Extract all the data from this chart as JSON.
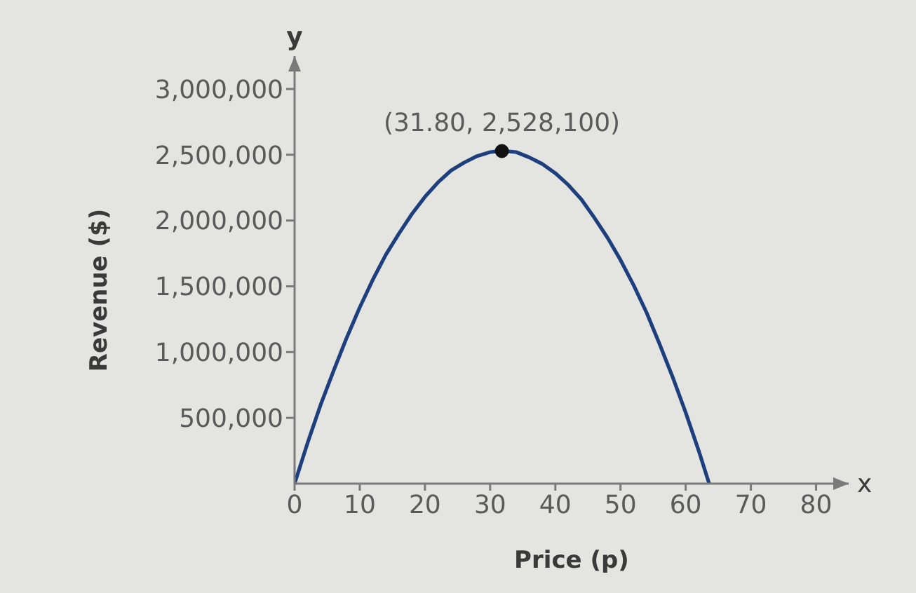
{
  "chart_data": {
    "type": "line",
    "xlabel": "Price (p)",
    "ylabel": "Revenue ($)",
    "series": [
      {
        "color": "#1e3f7e",
        "x": [
          0,
          2,
          4,
          6,
          8,
          10,
          12,
          14,
          16,
          18,
          20,
          22,
          24,
          26,
          28,
          30,
          31.8,
          34,
          36,
          38,
          40,
          42,
          44,
          46,
          48,
          50,
          52,
          54,
          56,
          58,
          60,
          62,
          63.6
        ],
        "values": [
          0,
          310000,
          600000,
          860000,
          1110000,
          1340000,
          1550000,
          1740000,
          1900000,
          2050000,
          2180000,
          2290000,
          2380000,
          2440000,
          2490000,
          2520000,
          2530000,
          2520000,
          2480000,
          2430000,
          2360000,
          2270000,
          2160000,
          2020000,
          1870000,
          1700000,
          1510000,
          1300000,
          1060000,
          810000,
          540000,
          250000,
          0
        ]
      },
      {
        "type": "scatter",
        "color": "#111111",
        "marker": "circle",
        "x": [
          31.8
        ],
        "values": [
          2528100
        ]
      }
    ],
    "xlim": [
      0,
      85
    ],
    "xticks": [
      0,
      10,
      20,
      30,
      40,
      50,
      60,
      70,
      80
    ],
    "ylim": [
      0,
      3250000
    ],
    "yticks": [
      {
        "value": 500000,
        "label": "500,000"
      },
      {
        "value": 1000000,
        "label": "1,000,000"
      },
      {
        "value": 1500000,
        "label": "1,500,000"
      },
      {
        "value": 2000000,
        "label": "2,000,000"
      },
      {
        "value": 2500000,
        "label": "2,500,000"
      },
      {
        "value": 3000000,
        "label": "3,000,000"
      }
    ],
    "annotations": [
      {
        "text": "(31.80, 2,528,100)",
        "x": 31.8,
        "y": 2528100
      },
      "y",
      "x"
    ]
  }
}
